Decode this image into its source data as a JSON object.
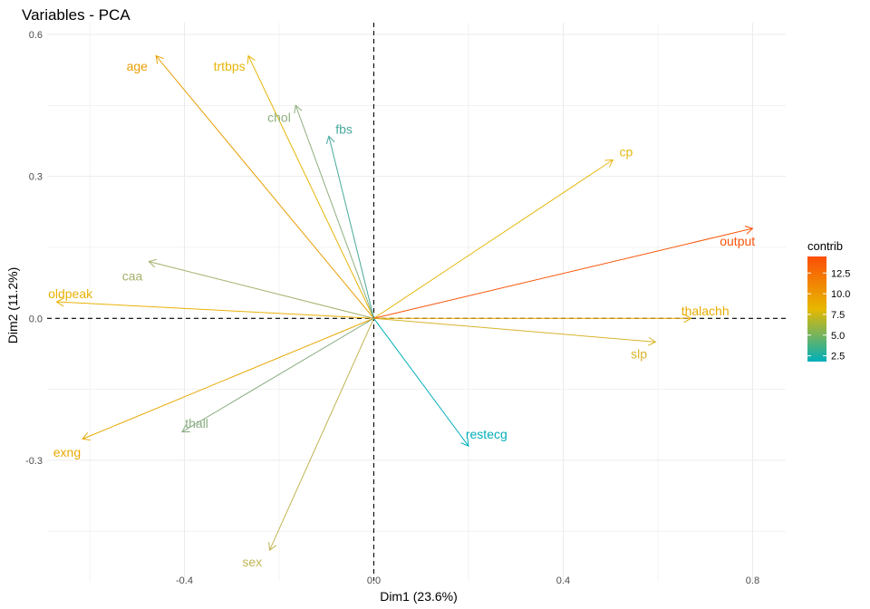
{
  "chart_data": {
    "type": "pca-variables",
    "title": "Variables - PCA",
    "xlabel": "Dim1 (23.6%)",
    "ylabel": "Dim2 (11.2%)",
    "xlim": [
      -0.69,
      0.87
    ],
    "ylim": [
      -0.555,
      0.625
    ],
    "x_ticks": [
      -0.4,
      0.0,
      0.4,
      0.8
    ],
    "y_ticks": [
      -0.3,
      0.0,
      0.3,
      0.6
    ],
    "x_tick_labels": [
      "-0.4",
      "0.0",
      "0.4",
      "0.8"
    ],
    "y_tick_labels": [
      "-0.3",
      "0.0",
      "0.3",
      "0.6"
    ],
    "grid": true,
    "legend": {
      "title": "contrib",
      "placement": "right",
      "range": [
        1.8,
        14.5
      ],
      "ticks": [
        2.5,
        5.0,
        7.5,
        10.0,
        12.5
      ],
      "tick_labels": [
        "2.5",
        "5.0",
        "7.5",
        "10.0",
        "12.5"
      ],
      "colors": [
        "#00AFBB",
        "#E7B800",
        "#FC4E07"
      ]
    },
    "variables": [
      {
        "name": "age",
        "x": -0.46,
        "y": 0.555,
        "contrib": 10.8,
        "color": "#E99E03",
        "label_x": -0.5,
        "label_y": 0.533
      },
      {
        "name": "sex",
        "x": -0.22,
        "y": -0.49,
        "contrib": 6.8,
        "color": "#C0B554",
        "label_x": -0.257,
        "label_y": -0.515
      },
      {
        "name": "cp",
        "x": 0.505,
        "y": 0.335,
        "contrib": 8.3,
        "color": "#E5B813",
        "label_x": 0.533,
        "label_y": 0.352
      },
      {
        "name": "trtbps",
        "x": -0.265,
        "y": 0.555,
        "contrib": 9.0,
        "color": "#E6B506",
        "label_x": -0.305,
        "label_y": 0.533
      },
      {
        "name": "chol",
        "x": -0.165,
        "y": 0.45,
        "contrib": 5.0,
        "color": "#8FAF7E",
        "label_x": -0.2,
        "label_y": 0.425
      },
      {
        "name": "fbs",
        "x": -0.095,
        "y": 0.385,
        "contrib": 3.2,
        "color": "#48A99D",
        "label_x": -0.063,
        "label_y": 0.4
      },
      {
        "name": "restecg",
        "x": 0.2,
        "y": -0.27,
        "contrib": 2.0,
        "color": "#03AFBA",
        "label_x": 0.238,
        "label_y": -0.245
      },
      {
        "name": "thalachh",
        "x": 0.67,
        "y": 0.0,
        "contrib": 9.8,
        "color": "#E9AC04",
        "label_x": 0.7,
        "label_y": 0.016
      },
      {
        "name": "exng",
        "x": -0.615,
        "y": -0.255,
        "contrib": 9.9,
        "color": "#E9A904",
        "label_x": -0.648,
        "label_y": -0.283
      },
      {
        "name": "oldpeak",
        "x": -0.67,
        "y": 0.035,
        "contrib": 9.6,
        "color": "#E9B207",
        "label_x": -0.641,
        "label_y": 0.052
      },
      {
        "name": "slp",
        "x": 0.595,
        "y": -0.05,
        "contrib": 7.6,
        "color": "#D9B42C",
        "label_x": 0.56,
        "label_y": -0.075
      },
      {
        "name": "caa",
        "x": -0.475,
        "y": 0.12,
        "contrib": 6.2,
        "color": "#A4B16C",
        "label_x": -0.51,
        "label_y": 0.09
      },
      {
        "name": "thall",
        "x": -0.405,
        "y": -0.24,
        "contrib": 5.0,
        "color": "#8AAE82",
        "label_x": -0.374,
        "label_y": -0.222
      },
      {
        "name": "output",
        "x": 0.8,
        "y": 0.19,
        "contrib": 14.3,
        "color": "#FA5509",
        "label_x": 0.768,
        "label_y": 0.163
      }
    ]
  }
}
